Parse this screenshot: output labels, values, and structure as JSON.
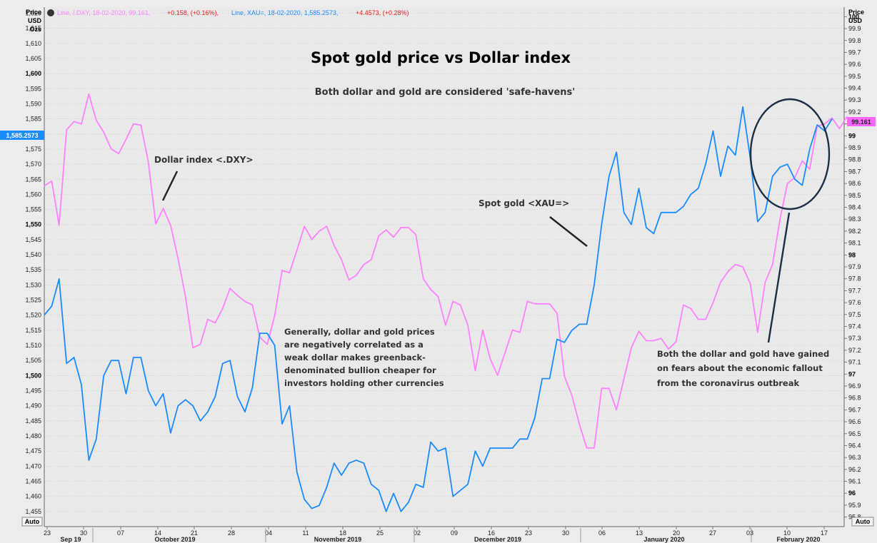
{
  "legend": {
    "dxy_text": "Line, /.DXY, 18-02-2020, 99.161,",
    "dxy_change": "+0.158, (+0.16%),",
    "xau_text": "Line, XAU=, 18-02-2020, 1,585.2573,",
    "xau_change": "+4.4573, (+0.28%)"
  },
  "axes": {
    "left_header": [
      "Price",
      "USD",
      "Ozs"
    ],
    "right_header": [
      "Price",
      "USD"
    ],
    "left_badge": "1,585.2573",
    "right_badge": "99.161",
    "auto_left": "Auto",
    "auto_right": "Auto"
  },
  "colors": {
    "gold": "#1a8cff",
    "dollar": "#ff80ff",
    "background": "#ececec",
    "grid": "#c8c8c8",
    "badge_blue": "#1a8cff",
    "badge_pink": "#ff66ff",
    "circle": "#1c2f45"
  },
  "chart_data": {
    "type": "line",
    "title": "Spot gold price vs Dollar index",
    "subtitle": "Both dollar and gold are considered 'safe-havens'",
    "x_tick_labels": [
      "23",
      "30",
      "07",
      "14",
      "21",
      "28",
      "04",
      "11",
      "18",
      "25",
      "02",
      "09",
      "16",
      "23",
      "30",
      "06",
      "13",
      "20",
      "27",
      "03",
      "10",
      "17"
    ],
    "month_labels": [
      "Sep 19",
      "October 2019",
      "November 2019",
      "December 2019",
      "January 2020",
      "February 2020"
    ],
    "left_axis": {
      "label": "Price USD Ozs",
      "ylim": [
        1450,
        1622
      ],
      "ticks": [
        1620,
        1615,
        1610,
        1605,
        1600,
        1595,
        1590,
        1585,
        1580,
        1575,
        1570,
        1565,
        1560,
        1555,
        1550,
        1545,
        1540,
        1535,
        1530,
        1525,
        1520,
        1515,
        1510,
        1505,
        1500,
        1495,
        1490,
        1485,
        1480,
        1475,
        1470,
        1465,
        1460,
        1455
      ],
      "bold_ticks": [
        1600,
        1550,
        1500
      ]
    },
    "right_axis": {
      "label": "Price USD",
      "ylim": [
        95.72,
        100.08
      ],
      "ticks": [
        100,
        99.9,
        99.8,
        99.7,
        99.6,
        99.5,
        99.4,
        99.3,
        99.2,
        99.1,
        99,
        98.9,
        98.8,
        98.7,
        98.6,
        98.5,
        98.4,
        98.3,
        98.2,
        98.1,
        98,
        97.9,
        97.8,
        97.7,
        97.6,
        97.5,
        97.4,
        97.3,
        97.2,
        97.1,
        97,
        96.9,
        96.8,
        96.7,
        96.6,
        96.5,
        96.4,
        96.3,
        96.2,
        96.1,
        96,
        95.9,
        95.8
      ],
      "bold_ticks": [
        100,
        99,
        98,
        97,
        96
      ]
    },
    "series": [
      {
        "name": "Spot gold <XAU=>",
        "axis": "left",
        "values": [
          1520,
          1523,
          1532,
          1504,
          1506,
          1497,
          1472,
          1479,
          1500,
          1505,
          1505,
          1494,
          1506,
          1506,
          1495,
          1490,
          1494,
          1481,
          1490,
          1492,
          1490,
          1485,
          1488,
          1493,
          1504,
          1505,
          1493,
          1488,
          1496,
          1514,
          1514,
          1510,
          1484,
          1490,
          1468,
          1459,
          1456,
          1457,
          1463,
          1471,
          1467,
          1471,
          1472,
          1471,
          1464,
          1462,
          1455,
          1461,
          1455,
          1458,
          1464,
          1463,
          1478,
          1475,
          1476,
          1460,
          1462,
          1464,
          1475,
          1470,
          1476,
          1476,
          1476,
          1476,
          1479,
          1479,
          1486,
          1499,
          1499,
          1512,
          1511,
          1515,
          1517,
          1517,
          1530,
          1550,
          1566,
          1574,
          1554,
          1550,
          1562,
          1549,
          1547,
          1554,
          1554,
          1554,
          1556,
          1560,
          1562,
          1570,
          1581,
          1566,
          1576,
          1573,
          1589,
          1572,
          1551,
          1554,
          1566,
          1569,
          1570,
          1565,
          1563,
          1575,
          1583,
          1581,
          1585
        ]
      },
      {
        "name": "Dollar index <.DXY>",
        "axis": "right",
        "values": [
          98.58,
          98.62,
          98.25,
          99.05,
          99.12,
          99.1,
          99.35,
          99.13,
          99.03,
          98.89,
          98.85,
          98.97,
          99.1,
          99.09,
          98.78,
          98.26,
          98.39,
          98.25,
          97.97,
          97.65,
          97.22,
          97.25,
          97.46,
          97.43,
          97.55,
          97.72,
          97.66,
          97.61,
          97.58,
          97.31,
          97.25,
          97.49,
          97.87,
          97.85,
          98.04,
          98.24,
          98.13,
          98.2,
          98.24,
          98.08,
          97.96,
          97.79,
          97.83,
          97.92,
          97.96,
          98.16,
          98.21,
          98.15,
          98.23,
          98.23,
          98.17,
          97.8,
          97.71,
          97.65,
          97.41,
          97.61,
          97.58,
          97.41,
          97.03,
          97.37,
          97.13,
          96.99,
          97.18,
          97.37,
          97.35,
          97.61,
          97.59,
          97.59,
          97.59,
          97.51,
          96.98,
          96.82,
          96.58,
          96.38,
          96.38,
          96.88,
          96.88,
          96.7,
          96.96,
          97.22,
          97.36,
          97.28,
          97.28,
          97.3,
          97.21,
          97.27,
          97.58,
          97.55,
          97.46,
          97.46,
          97.6,
          97.77,
          97.86,
          97.92,
          97.9,
          97.76,
          97.35,
          97.77,
          97.92,
          98.3,
          98.6,
          98.65,
          98.79,
          98.72,
          99.08,
          99.1,
          99.15,
          99.06,
          99.16
        ]
      }
    ]
  },
  "annotations": {
    "dollar_label": "Dollar index <.DXY>",
    "gold_label": "Spot gold <XAU=>",
    "explain_lines": [
      "Generally, dollar and gold prices",
      "are negatively correlated as a",
      "weak dollar makes greenback-",
      "denominated bullion cheaper for",
      "investors holding other currencies"
    ],
    "fear_lines": [
      "Both the dollar and gold have gained",
      "on fears about the economic fallout",
      "from the coronavirus outbreak"
    ]
  }
}
